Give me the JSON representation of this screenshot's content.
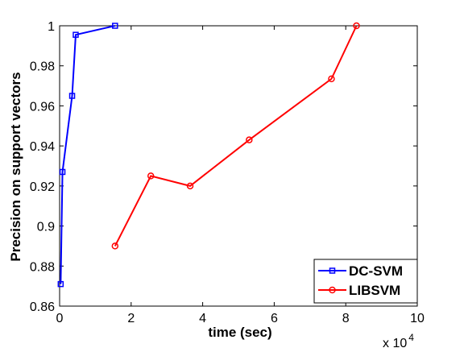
{
  "chart_data": {
    "type": "line",
    "xlabel": "time (sec)",
    "ylabel": "Precision on support vectors",
    "x_multiplier_label": "x 10",
    "x_multiplier_exp": "4",
    "xlim": [
      0,
      10
    ],
    "ylim": [
      0.86,
      1.0
    ],
    "xticks": [
      0,
      2,
      4,
      6,
      8,
      10
    ],
    "xtick_labels": [
      "0",
      "2",
      "4",
      "6",
      "8",
      "10"
    ],
    "yticks": [
      0.86,
      0.88,
      0.9,
      0.92,
      0.94,
      0.96,
      0.98,
      1.0
    ],
    "ytick_labels": [
      "0.86",
      "0.88",
      "0.9",
      "0.92",
      "0.94",
      "0.96",
      "0.98",
      "1"
    ],
    "grid": false,
    "legend_position": "bottom-right",
    "series": [
      {
        "name": "DC-SVM",
        "color": "#0000ff",
        "marker": "square",
        "x": [
          0.03,
          0.08,
          0.35,
          0.45,
          1.55
        ],
        "y": [
          0.871,
          0.927,
          0.965,
          0.9955,
          1.0
        ]
      },
      {
        "name": "LIBSVM",
        "color": "#ff0000",
        "marker": "circle",
        "x": [
          1.55,
          2.55,
          3.65,
          5.3,
          7.6,
          8.3
        ],
        "y": [
          0.89,
          0.925,
          0.92,
          0.943,
          0.9735,
          1.0
        ]
      }
    ]
  }
}
